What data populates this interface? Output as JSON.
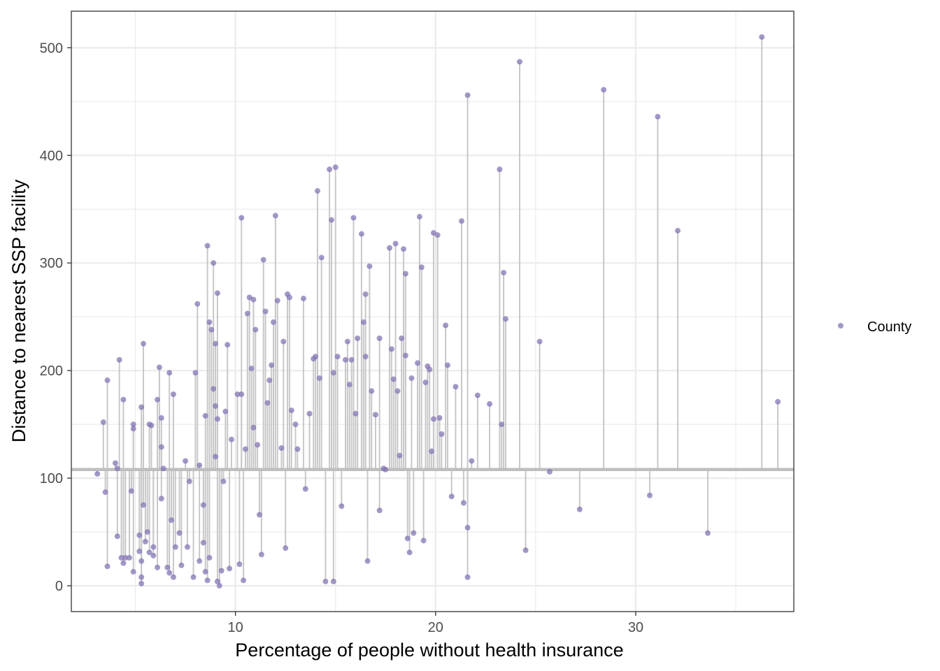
{
  "chart_data": {
    "type": "scatter",
    "style": "lollipop",
    "xlabel": "Percentage of people without health insurance",
    "ylabel": "Distance to nearest SSP facility",
    "xlim": [
      1.8,
      37.9
    ],
    "ylim": [
      -24,
      534
    ],
    "x_ticks": [
      10,
      20,
      30
    ],
    "x_tick_labels": [
      "10",
      "20",
      "30"
    ],
    "y_ticks": [
      0,
      100,
      200,
      300,
      400,
      500
    ],
    "y_tick_labels": [
      "0",
      "100",
      "200",
      "300",
      "400",
      "500"
    ],
    "reference_line_y": 108,
    "grid": true,
    "legend": {
      "position": "right",
      "entries": [
        "County"
      ]
    },
    "colors": {
      "point": "#8575b4",
      "stem": "#c8c8c8",
      "reference": "#bebebe",
      "panel_border": "#333333",
      "grid": "#ebebeb"
    },
    "series": [
      {
        "name": "County",
        "points": [
          [
            3.1,
            104
          ],
          [
            3.4,
            152
          ],
          [
            3.5,
            87
          ],
          [
            3.6,
            191
          ],
          [
            3.6,
            18
          ],
          [
            4.0,
            114
          ],
          [
            4.1,
            109
          ],
          [
            4.1,
            46
          ],
          [
            4.2,
            210
          ],
          [
            4.3,
            26
          ],
          [
            4.4,
            173
          ],
          [
            4.4,
            21
          ],
          [
            4.5,
            26
          ],
          [
            4.7,
            26
          ],
          [
            4.8,
            88
          ],
          [
            4.9,
            150
          ],
          [
            4.9,
            146
          ],
          [
            4.9,
            13
          ],
          [
            5.2,
            47
          ],
          [
            5.2,
            32
          ],
          [
            5.3,
            166
          ],
          [
            5.3,
            2
          ],
          [
            5.3,
            8
          ],
          [
            5.3,
            23
          ],
          [
            5.4,
            225
          ],
          [
            5.4,
            75
          ],
          [
            5.5,
            41
          ],
          [
            5.6,
            50
          ],
          [
            5.7,
            31
          ],
          [
            5.7,
            150
          ],
          [
            5.8,
            149
          ],
          [
            5.9,
            28
          ],
          [
            5.9,
            36
          ],
          [
            6.1,
            173
          ],
          [
            6.1,
            17
          ],
          [
            6.2,
            203
          ],
          [
            6.3,
            156
          ],
          [
            6.3,
            129
          ],
          [
            6.3,
            81
          ],
          [
            6.4,
            109
          ],
          [
            6.6,
            17
          ],
          [
            6.7,
            198
          ],
          [
            6.7,
            12
          ],
          [
            6.8,
            61
          ],
          [
            6.9,
            178
          ],
          [
            6.9,
            8
          ],
          [
            7.0,
            36
          ],
          [
            7.2,
            49
          ],
          [
            7.3,
            19
          ],
          [
            7.5,
            116
          ],
          [
            7.6,
            36
          ],
          [
            7.7,
            97
          ],
          [
            7.9,
            8
          ],
          [
            8.0,
            198
          ],
          [
            8.1,
            262
          ],
          [
            8.2,
            112
          ],
          [
            8.2,
            23
          ],
          [
            8.4,
            75
          ],
          [
            8.4,
            40
          ],
          [
            8.5,
            158
          ],
          [
            8.5,
            13
          ],
          [
            8.6,
            5
          ],
          [
            8.6,
            316
          ],
          [
            8.7,
            245
          ],
          [
            8.7,
            26
          ],
          [
            8.8,
            238
          ],
          [
            8.9,
            183
          ],
          [
            8.9,
            300
          ],
          [
            9.0,
            225
          ],
          [
            9.0,
            167
          ],
          [
            9.0,
            120
          ],
          [
            9.1,
            272
          ],
          [
            9.1,
            155
          ],
          [
            9.1,
            4
          ],
          [
            9.2,
            0
          ],
          [
            9.3,
            14
          ],
          [
            9.4,
            97
          ],
          [
            9.5,
            162
          ],
          [
            9.6,
            224
          ],
          [
            9.7,
            16
          ],
          [
            9.8,
            136
          ],
          [
            10.1,
            178
          ],
          [
            10.2,
            20
          ],
          [
            10.3,
            342
          ],
          [
            10.3,
            178
          ],
          [
            10.4,
            5
          ],
          [
            10.5,
            127
          ],
          [
            10.6,
            253
          ],
          [
            10.7,
            268
          ],
          [
            10.8,
            202
          ],
          [
            10.9,
            266
          ],
          [
            10.9,
            147
          ],
          [
            11.0,
            238
          ],
          [
            11.1,
            131
          ],
          [
            11.2,
            66
          ],
          [
            11.3,
            29
          ],
          [
            11.4,
            303
          ],
          [
            11.5,
            255
          ],
          [
            11.6,
            170
          ],
          [
            11.7,
            191
          ],
          [
            11.8,
            205
          ],
          [
            11.9,
            245
          ],
          [
            12.0,
            344
          ],
          [
            12.1,
            265
          ],
          [
            12.3,
            128
          ],
          [
            12.4,
            227
          ],
          [
            12.5,
            35
          ],
          [
            12.6,
            271
          ],
          [
            12.7,
            268
          ],
          [
            12.8,
            163
          ],
          [
            13.0,
            150
          ],
          [
            13.1,
            127
          ],
          [
            13.4,
            267
          ],
          [
            13.5,
            90
          ],
          [
            13.7,
            160
          ],
          [
            13.9,
            211
          ],
          [
            14.0,
            213
          ],
          [
            14.1,
            367
          ],
          [
            14.2,
            193
          ],
          [
            14.3,
            305
          ],
          [
            14.5,
            4
          ],
          [
            14.7,
            387
          ],
          [
            14.8,
            340
          ],
          [
            14.9,
            198
          ],
          [
            14.9,
            4
          ],
          [
            15.0,
            389
          ],
          [
            15.1,
            213
          ],
          [
            15.3,
            74
          ],
          [
            15.5,
            210
          ],
          [
            15.6,
            227
          ],
          [
            15.7,
            187
          ],
          [
            15.8,
            210
          ],
          [
            15.9,
            342
          ],
          [
            16.0,
            160
          ],
          [
            16.1,
            230
          ],
          [
            16.3,
            327
          ],
          [
            16.4,
            245
          ],
          [
            16.5,
            271
          ],
          [
            16.5,
            213
          ],
          [
            16.6,
            23
          ],
          [
            16.7,
            297
          ],
          [
            16.8,
            181
          ],
          [
            17.0,
            159
          ],
          [
            17.2,
            70
          ],
          [
            17.2,
            230
          ],
          [
            17.4,
            109
          ],
          [
            17.5,
            108
          ],
          [
            17.7,
            314
          ],
          [
            17.8,
            220
          ],
          [
            17.9,
            192
          ],
          [
            18.0,
            318
          ],
          [
            18.1,
            181
          ],
          [
            18.2,
            121
          ],
          [
            18.3,
            230
          ],
          [
            18.4,
            313
          ],
          [
            18.5,
            290
          ],
          [
            18.5,
            214
          ],
          [
            18.6,
            44
          ],
          [
            18.7,
            31
          ],
          [
            18.8,
            193
          ],
          [
            18.9,
            49
          ],
          [
            19.1,
            207
          ],
          [
            19.2,
            343
          ],
          [
            19.3,
            296
          ],
          [
            19.4,
            42
          ],
          [
            19.5,
            189
          ],
          [
            19.6,
            204
          ],
          [
            19.7,
            201
          ],
          [
            19.8,
            125
          ],
          [
            19.9,
            328
          ],
          [
            19.9,
            155
          ],
          [
            20.1,
            326
          ],
          [
            20.2,
            156
          ],
          [
            20.3,
            141
          ],
          [
            20.5,
            242
          ],
          [
            20.6,
            205
          ],
          [
            20.8,
            83
          ],
          [
            21.0,
            185
          ],
          [
            21.3,
            339
          ],
          [
            21.4,
            77
          ],
          [
            21.6,
            456
          ],
          [
            21.6,
            54
          ],
          [
            21.6,
            8
          ],
          [
            21.8,
            116
          ],
          [
            22.1,
            177
          ],
          [
            22.7,
            169
          ],
          [
            23.2,
            387
          ],
          [
            23.3,
            150
          ],
          [
            23.4,
            291
          ],
          [
            23.5,
            248
          ],
          [
            24.2,
            487
          ],
          [
            24.5,
            33
          ],
          [
            25.2,
            227
          ],
          [
            25.7,
            106
          ],
          [
            27.2,
            71
          ],
          [
            28.4,
            461
          ],
          [
            30.7,
            84
          ],
          [
            31.1,
            436
          ],
          [
            32.1,
            330
          ],
          [
            33.6,
            49
          ],
          [
            36.3,
            510
          ],
          [
            37.1,
            171
          ]
        ]
      }
    ]
  }
}
